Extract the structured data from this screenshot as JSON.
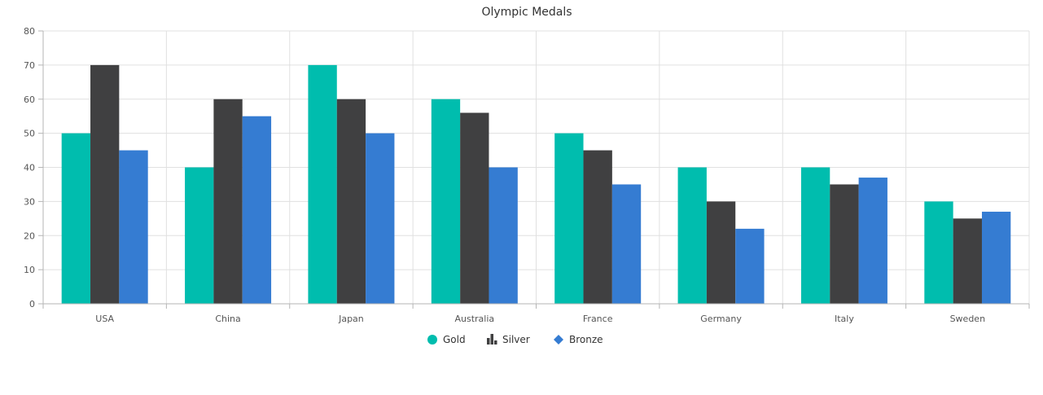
{
  "chart_data": {
    "type": "bar",
    "title": "Olympic Medals",
    "xlabel": "",
    "ylabel": "",
    "ylim": [
      0,
      80
    ],
    "yticks": [
      "0",
      "10",
      "20",
      "30",
      "40",
      "50",
      "60",
      "70",
      "80"
    ],
    "categories": [
      "USA",
      "China",
      "Japan",
      "Australia",
      "France",
      "Germany",
      "Italy",
      "Sweden"
    ],
    "series": [
      {
        "name": "Gold",
        "color": "#00BDAE",
        "legend_icon": "circle-icon",
        "values": [
          50,
          40,
          70,
          60,
          50,
          40,
          40,
          30
        ]
      },
      {
        "name": "Silver",
        "color": "#404041",
        "legend_icon": "bar-chart-icon",
        "values": [
          70,
          60,
          60,
          56,
          45,
          30,
          35,
          25
        ]
      },
      {
        "name": "Bronze",
        "color": "#357CD2",
        "legend_icon": "diamond-icon",
        "values": [
          45,
          55,
          50,
          40,
          35,
          22,
          37,
          27
        ]
      }
    ],
    "grid": true,
    "legend_position": "bottom"
  }
}
